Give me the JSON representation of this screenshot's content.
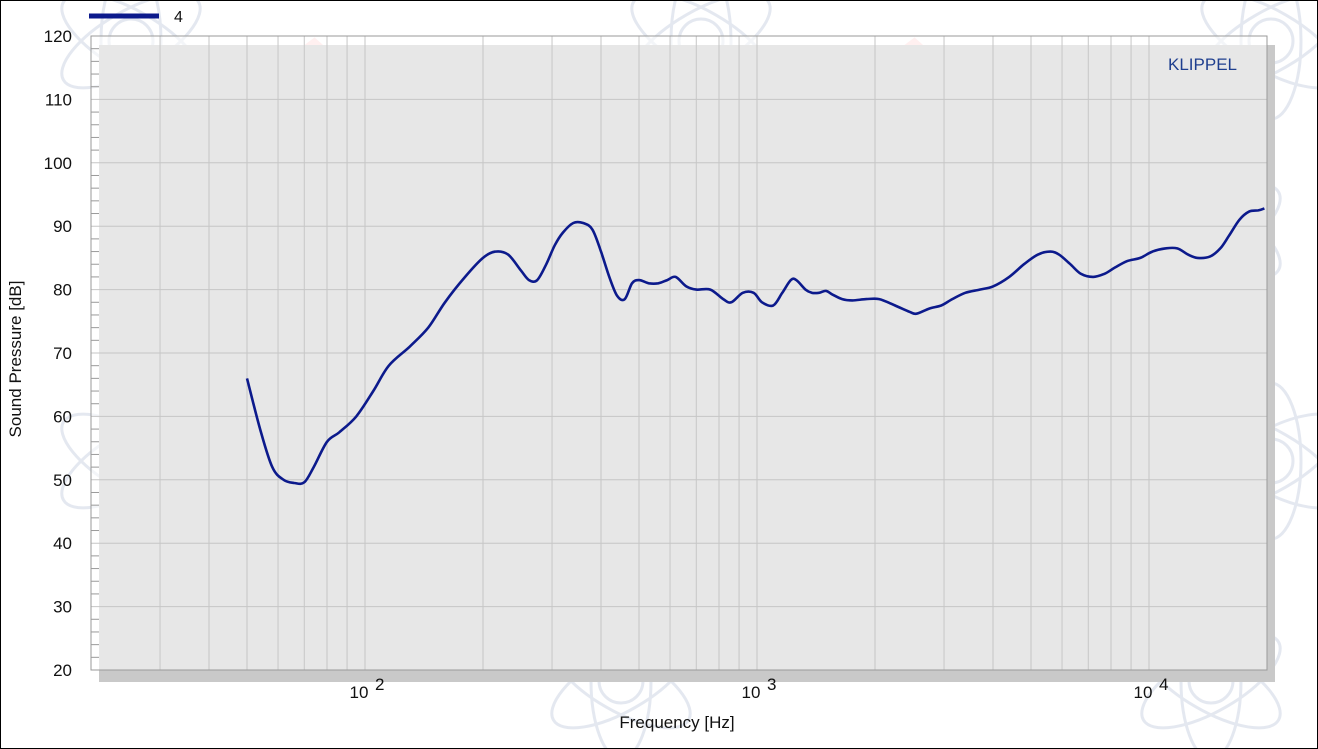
{
  "chart_data": {
    "type": "line",
    "xlabel": "Frequency  [Hz]",
    "ylabel": "Sound Pressure  [dB]",
    "xscale": "log",
    "xlim": [
      20,
      20000
    ],
    "ylim": [
      20,
      120
    ],
    "yticks": [
      20,
      30,
      40,
      50,
      60,
      70,
      80,
      90,
      100,
      110,
      120
    ],
    "xtick_labels": [
      {
        "value": 100,
        "base": "10",
        "exp": "2"
      },
      {
        "value": 1000,
        "base": "10",
        "exp": "3"
      },
      {
        "value": 10000,
        "base": "10",
        "exp": "4"
      }
    ],
    "grid": true,
    "legend_position": "top-left",
    "brand_label": "KLIPPEL",
    "series": [
      {
        "name": "4",
        "color": "#0c1a8c",
        "points": [
          [
            50,
            66
          ],
          [
            54,
            58
          ],
          [
            58,
            52
          ],
          [
            62,
            50
          ],
          [
            66,
            49.5
          ],
          [
            70,
            49.6
          ],
          [
            74,
            52
          ],
          [
            80,
            56
          ],
          [
            86,
            57.5
          ],
          [
            95,
            60
          ],
          [
            105,
            64
          ],
          [
            115,
            68
          ],
          [
            130,
            71
          ],
          [
            145,
            74
          ],
          [
            160,
            78
          ],
          [
            180,
            82
          ],
          [
            200,
            85
          ],
          [
            215,
            86
          ],
          [
            232,
            85.5
          ],
          [
            250,
            83
          ],
          [
            262,
            81.5
          ],
          [
            275,
            81.5
          ],
          [
            290,
            84
          ],
          [
            305,
            87
          ],
          [
            320,
            89
          ],
          [
            340,
            90.5
          ],
          [
            360,
            90.5
          ],
          [
            380,
            89.5
          ],
          [
            400,
            86
          ],
          [
            420,
            82
          ],
          [
            440,
            79
          ],
          [
            460,
            78.5
          ],
          [
            480,
            81
          ],
          [
            500,
            81.5
          ],
          [
            530,
            81
          ],
          [
            560,
            81
          ],
          [
            590,
            81.5
          ],
          [
            620,
            82
          ],
          [
            660,
            80.5
          ],
          [
            700,
            80
          ],
          [
            760,
            80
          ],
          [
            820,
            78.5
          ],
          [
            860,
            78
          ],
          [
            920,
            79.5
          ],
          [
            980,
            79.5
          ],
          [
            1030,
            78
          ],
          [
            1100,
            77.5
          ],
          [
            1160,
            79.5
          ],
          [
            1220,
            81.5
          ],
          [
            1260,
            81.5
          ],
          [
            1330,
            80
          ],
          [
            1380,
            79.5
          ],
          [
            1440,
            79.5
          ],
          [
            1500,
            79.8
          ],
          [
            1560,
            79.2
          ],
          [
            1650,
            78.5
          ],
          [
            1750,
            78.3
          ],
          [
            1900,
            78.5
          ],
          [
            2050,
            78.5
          ],
          [
            2250,
            77.5
          ],
          [
            2450,
            76.5
          ],
          [
            2550,
            76.2
          ],
          [
            2750,
            77
          ],
          [
            2950,
            77.5
          ],
          [
            3150,
            78.5
          ],
          [
            3400,
            79.5
          ],
          [
            3700,
            80
          ],
          [
            4000,
            80.5
          ],
          [
            4400,
            82
          ],
          [
            4800,
            84
          ],
          [
            5200,
            85.5
          ],
          [
            5600,
            86
          ],
          [
            5900,
            85.5
          ],
          [
            6300,
            84
          ],
          [
            6700,
            82.5
          ],
          [
            7200,
            82
          ],
          [
            7700,
            82.5
          ],
          [
            8200,
            83.5
          ],
          [
            8800,
            84.5
          ],
          [
            9500,
            85
          ],
          [
            10200,
            86
          ],
          [
            11000,
            86.5
          ],
          [
            11800,
            86.5
          ],
          [
            12600,
            85.5
          ],
          [
            13300,
            85
          ],
          [
            14300,
            85.2
          ],
          [
            15200,
            86.5
          ],
          [
            16000,
            88.5
          ],
          [
            17000,
            91
          ],
          [
            18000,
            92.3
          ],
          [
            19000,
            92.5
          ],
          [
            19700,
            92.8
          ]
        ]
      }
    ]
  }
}
